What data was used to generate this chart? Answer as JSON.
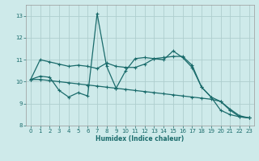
{
  "xlabel": "Humidex (Indice chaleur)",
  "bg_color": "#ceeaea",
  "grid_color": "#aecece",
  "line_color": "#1a6b6b",
  "xlim": [
    -0.5,
    23.5
  ],
  "ylim": [
    8,
    13.5
  ],
  "yticks": [
    8,
    9,
    10,
    11,
    12,
    13
  ],
  "xticks": [
    0,
    1,
    2,
    3,
    4,
    5,
    6,
    7,
    8,
    9,
    10,
    11,
    12,
    13,
    14,
    15,
    16,
    17,
    18,
    19,
    20,
    21,
    22,
    23
  ],
  "line1_x": [
    0,
    1,
    2,
    3,
    4,
    5,
    6,
    7,
    8,
    9,
    10,
    11,
    12,
    13,
    14,
    15,
    16,
    17,
    18,
    19,
    20,
    21,
    22,
    23
  ],
  "line1_y": [
    10.1,
    11.0,
    10.9,
    10.8,
    10.7,
    10.75,
    10.7,
    10.6,
    10.85,
    10.7,
    10.65,
    10.65,
    10.8,
    11.05,
    11.1,
    11.15,
    11.15,
    10.75,
    9.75,
    9.3,
    8.7,
    8.5,
    8.4,
    8.35
  ],
  "line2_x": [
    0,
    1,
    2,
    3,
    4,
    5,
    6,
    7,
    8,
    9,
    10,
    11,
    12,
    13,
    14,
    15,
    16,
    17,
    18,
    19,
    20,
    21,
    22,
    23
  ],
  "line2_y": [
    10.1,
    10.25,
    10.2,
    9.6,
    9.3,
    9.5,
    9.35,
    13.1,
    10.7,
    9.7,
    10.5,
    11.05,
    11.1,
    11.05,
    11.0,
    11.4,
    11.1,
    10.65,
    9.75,
    9.3,
    9.1,
    8.7,
    8.4,
    8.35
  ],
  "line3_x": [
    0,
    1,
    2,
    3,
    4,
    5,
    6,
    7,
    8,
    9,
    10,
    11,
    12,
    13,
    14,
    15,
    16,
    17,
    18,
    19,
    20,
    21,
    22,
    23
  ],
  "line3_y": [
    10.1,
    10.1,
    10.05,
    10.0,
    9.95,
    9.9,
    9.85,
    9.8,
    9.75,
    9.7,
    9.65,
    9.6,
    9.55,
    9.5,
    9.45,
    9.4,
    9.35,
    9.3,
    9.25,
    9.2,
    9.1,
    8.75,
    8.45,
    8.35
  ]
}
